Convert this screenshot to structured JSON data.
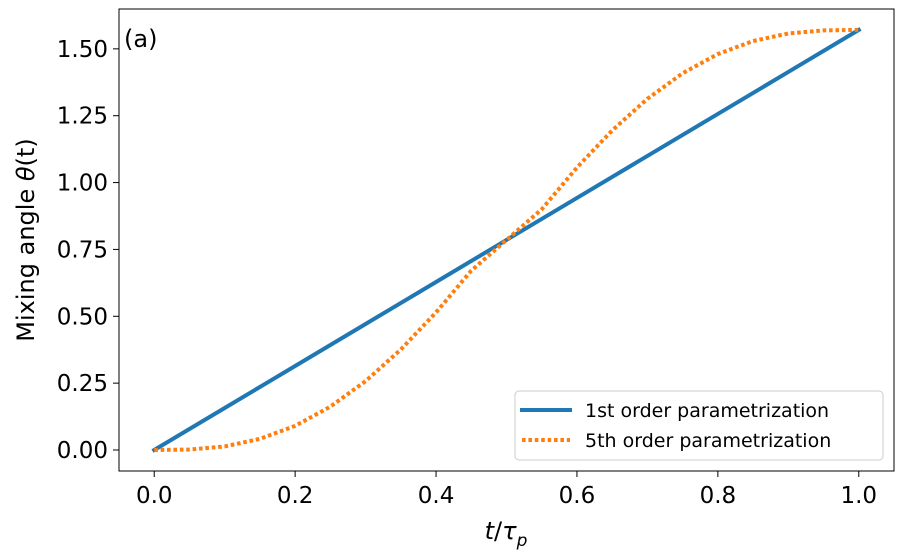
{
  "chart_data": {
    "type": "line",
    "panel_label": "(a)",
    "xlabel_main": "t",
    "xlabel_slash": "/",
    "xlabel_tau": "τ",
    "xlabel_sub": "p",
    "ylabel_text": "Mixing angle ",
    "ylabel_theta": "θ",
    "ylabel_arg": "(t)",
    "xlim": [
      -0.05,
      1.05
    ],
    "ylim": [
      -0.0785,
      1.649
    ],
    "xticks": [
      0.0,
      0.2,
      0.4,
      0.6,
      0.8,
      1.0
    ],
    "xtick_labels": [
      "0.0",
      "0.2",
      "0.4",
      "0.6",
      "0.8",
      "1.0"
    ],
    "yticks": [
      0.0,
      0.25,
      0.5,
      0.75,
      1.0,
      1.25,
      1.5
    ],
    "ytick_labels": [
      "0.00",
      "0.25",
      "0.50",
      "0.75",
      "1.00",
      "1.25",
      "1.50"
    ],
    "legend_position": "lower right",
    "series": [
      {
        "name": "1st order parametrization",
        "color": "#1f77b4",
        "style": "solid",
        "x": [
          0.0,
          0.1,
          0.2,
          0.3,
          0.4,
          0.5,
          0.6,
          0.7,
          0.8,
          0.9,
          1.0
        ],
        "y": [
          0.0,
          0.1571,
          0.3142,
          0.4712,
          0.6283,
          0.7854,
          0.9425,
          1.0996,
          1.2566,
          1.4137,
          1.5708
        ]
      },
      {
        "name": "5th order parametrization",
        "color": "#ff7f0e",
        "style": "dotted",
        "x": [
          0.0,
          0.05,
          0.1,
          0.15,
          0.2,
          0.25,
          0.3,
          0.35,
          0.4,
          0.45,
          0.5,
          0.55,
          0.6,
          0.65,
          0.7,
          0.75,
          0.8,
          0.85,
          0.9,
          0.95,
          1.0
        ],
        "y": [
          0.0,
          0.0018,
          0.0133,
          0.0416,
          0.0903,
          0.162,
          0.2575,
          0.3758,
          0.5146,
          0.6707,
          0.7854,
          0.9001,
          1.0562,
          1.195,
          1.3133,
          1.4088,
          1.4805,
          1.5292,
          1.5575,
          1.569,
          1.5708
        ]
      }
    ]
  }
}
